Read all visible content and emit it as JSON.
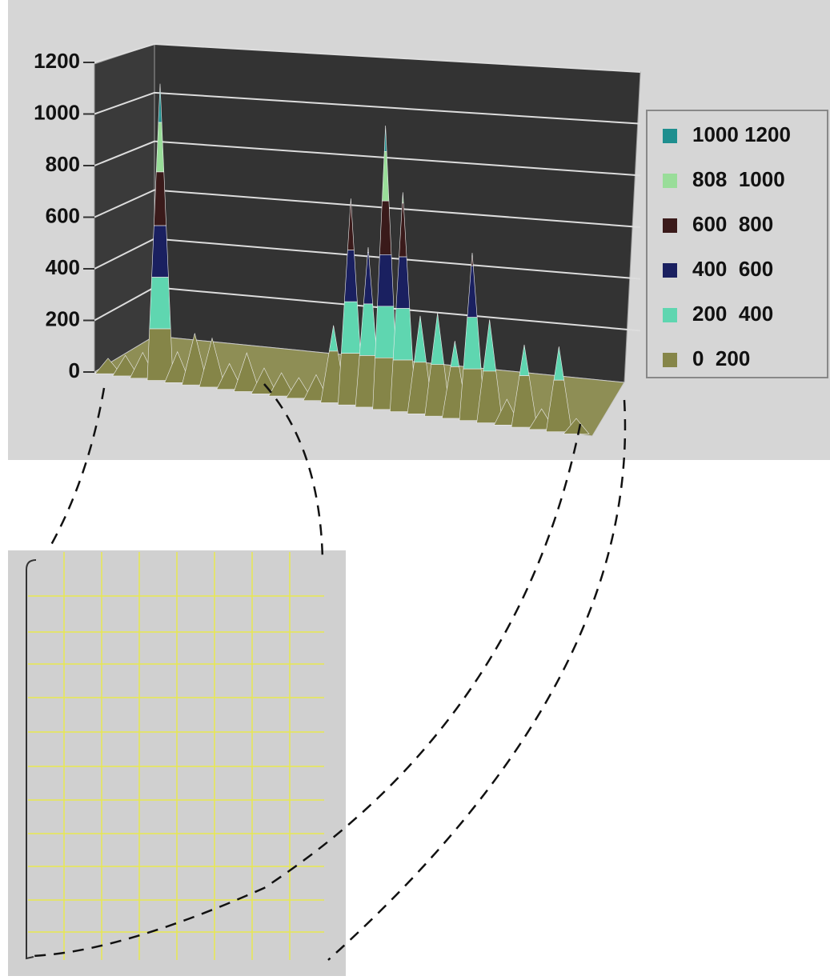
{
  "chart_data": {
    "type": "surface3d",
    "categories": [
      null,
      null,
      null,
      null,
      null,
      null,
      null,
      null,
      null,
      null,
      null,
      null,
      null,
      null,
      null,
      null,
      null,
      null,
      null,
      null,
      null,
      null,
      null,
      null,
      null,
      null,
      null,
      null
    ],
    "values": [
      60,
      80,
      100,
      1150,
      120,
      200,
      190,
      100,
      150,
      100,
      90,
      80,
      100,
      300,
      800,
      620,
      1100,
      850,
      380,
      400,
      300,
      650,
      400,
      100,
      320,
      80,
      330,
      60
    ],
    "ylim": [
      0,
      1200
    ],
    "yticks": [
      0,
      200,
      400,
      600,
      800,
      1000,
      1200
    ],
    "grid": true,
    "bands": [
      {
        "label": "1000 1200",
        "min": 1000,
        "max": 1200,
        "color": "#1f8f8f"
      },
      {
        "label": "808  1000",
        "min": 808,
        "max": 1000,
        "color": "#99dd99"
      },
      {
        "label": "600  800",
        "min": 600,
        "max": 808,
        "color": "#3a1a1a"
      },
      {
        "label": "400  600",
        "min": 400,
        "max": 600,
        "color": "#1a2060"
      },
      {
        "label": "200  400",
        "min": 200,
        "max": 400,
        "color": "#5fd6b0"
      },
      {
        "label": "0  200",
        "min": 0,
        "max": 200,
        "color": "#858548"
      }
    ]
  }
}
